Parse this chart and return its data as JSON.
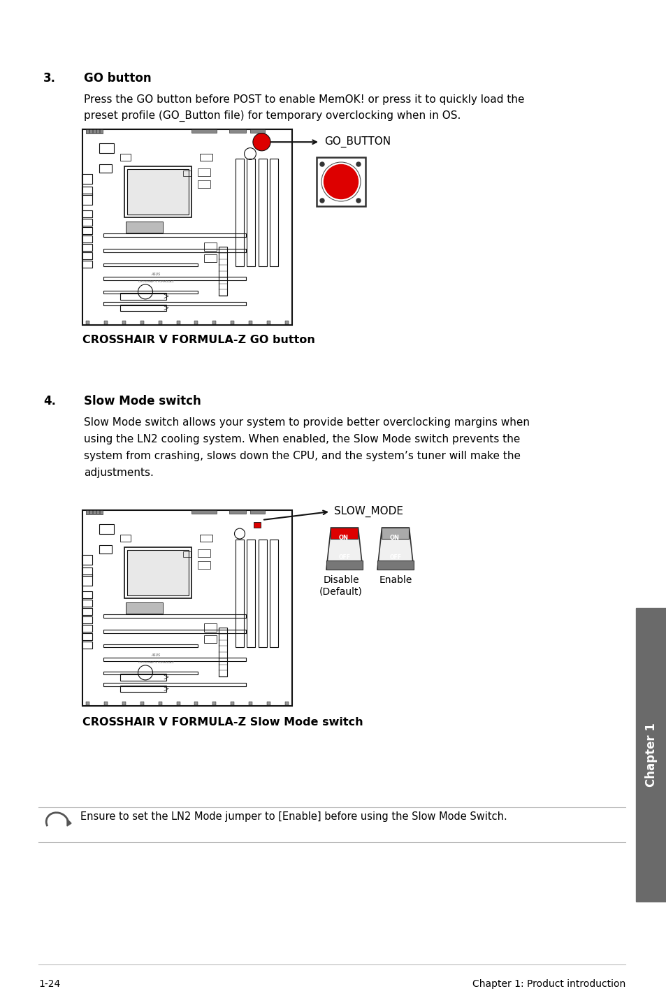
{
  "page_number": "1-24",
  "footer_text": "Chapter 1: Product introduction",
  "section3_number": "3.",
  "section3_title": "GO button",
  "section3_body1": "Press the GO button before POST to enable MemOK! or press it to quickly load the",
  "section3_body2": "preset profile (GO_Button file) for temporary overclocking when in OS.",
  "section3_caption": "CROSSHAIR V FORMULA-Z GO button",
  "go_button_label": "GO_BUTTON",
  "section4_number": "4.",
  "section4_title": "Slow Mode switch",
  "section4_body1": "Slow Mode switch allows your system to provide better overclocking margins when",
  "section4_body2": "using the LN2 cooling system. When enabled, the Slow Mode switch prevents the",
  "section4_body3": "system from crashing, slows down the CPU, and the system’s tuner will make the",
  "section4_body4": "adjustments.",
  "section4_caption": "CROSSHAIR V FORMULA-Z Slow Mode switch",
  "slow_mode_label": "SLOW_MODE",
  "disable_label": "Disable\n(Default)",
  "enable_label": "Enable",
  "note_text": "Ensure to set the LN2 Mode jumper to [Enable] before using the Slow Mode Switch.",
  "bg_color": "#ffffff",
  "text_color": "#000000",
  "sidebar_color": "#6a6a6a",
  "sidebar_text": "Chapter 1",
  "line_color": "#bbbbbb",
  "red_color": "#dd0000",
  "mb_edge": "#111111",
  "mb_inner": "#444444"
}
